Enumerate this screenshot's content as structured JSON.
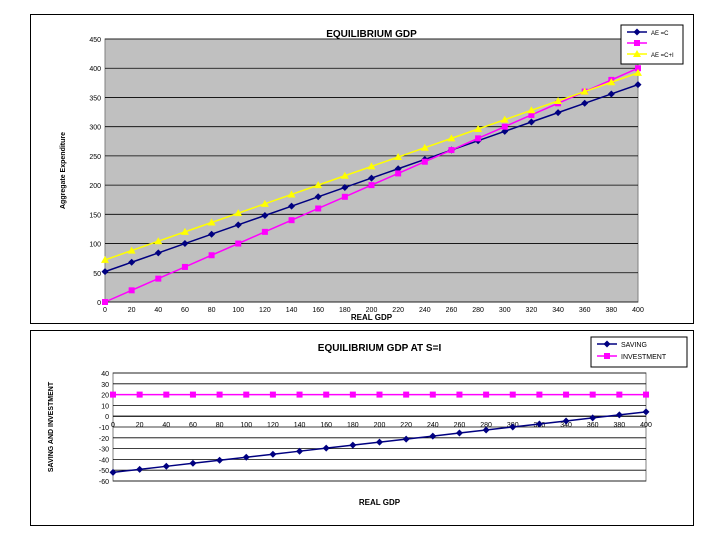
{
  "chart_data": [
    {
      "type": "line",
      "title": "EQUILIBRIUM GDP",
      "xlabel": "REAL GDP",
      "ylabel": "Aggregate Expenditure",
      "x": [
        0,
        20,
        40,
        60,
        80,
        100,
        120,
        140,
        160,
        180,
        200,
        220,
        240,
        260,
        280,
        300,
        320,
        340,
        360,
        380,
        400
      ],
      "xlim": [
        0,
        400
      ],
      "ylim": [
        0,
        450
      ],
      "yticks": [
        0,
        50,
        100,
        150,
        200,
        250,
        300,
        350,
        400,
        450
      ],
      "plot_background": "#c0c0c0",
      "grid": true,
      "legend_position": "top-right",
      "series": [
        {
          "name": "AE =C",
          "color": "#000080",
          "marker": "diamond",
          "values": [
            52,
            68,
            84,
            100,
            116,
            132,
            148,
            164,
            180,
            196,
            212,
            228,
            244,
            260,
            276,
            292,
            308,
            324,
            340,
            356,
            372
          ]
        },
        {
          "name": "",
          "color": "#ff00ff",
          "marker": "square",
          "values": [
            0,
            20,
            40,
            60,
            80,
            100,
            120,
            140,
            160,
            180,
            200,
            220,
            240,
            260,
            280,
            300,
            320,
            340,
            360,
            380,
            400
          ]
        },
        {
          "name": "AE =C+I",
          "color": "#ffff00",
          "marker": "triangle",
          "values": [
            72,
            88,
            104,
            120,
            136,
            152,
            168,
            184,
            200,
            216,
            232,
            248,
            264,
            280,
            296,
            312,
            328,
            344,
            360,
            376,
            392
          ]
        }
      ]
    },
    {
      "type": "line",
      "title": "EQUILIBRIUM GDP AT S=I",
      "xlabel": "REAL GDP",
      "ylabel": "SAVING AND INVESTMENT",
      "x": [
        0,
        20,
        40,
        60,
        80,
        100,
        120,
        140,
        160,
        180,
        200,
        220,
        240,
        260,
        280,
        300,
        320,
        340,
        360,
        380,
        400
      ],
      "xticks": [
        "0",
        "20",
        "40",
        "60",
        "80",
        "100",
        "120",
        "140",
        "160",
        "180",
        "200",
        "220",
        "240",
        "260",
        "280",
        "300",
        "320",
        "340",
        "360",
        "380",
        "400"
      ],
      "xlim": [
        0,
        400
      ],
      "ylim": [
        -60,
        40
      ],
      "yticks": [
        40,
        30,
        20,
        10,
        0,
        -10,
        -20,
        -30,
        -40,
        -50,
        -60
      ],
      "plot_background": "#ffffff",
      "grid": true,
      "legend_position": "top-right",
      "series": [
        {
          "name": "SAVING",
          "color": "#000080",
          "marker": "diamond",
          "values": [
            -52,
            -49.2,
            -46.4,
            -43.6,
            -40.8,
            -38,
            -35.2,
            -32.4,
            -29.6,
            -26.8,
            -24,
            -21.2,
            -18.4,
            -15.6,
            -12.8,
            -10,
            -7.2,
            -4.4,
            -1.6,
            1.2,
            4
          ]
        },
        {
          "name": "INVESTMENT",
          "color": "#ff00ff",
          "marker": "square",
          "values": [
            20,
            20,
            20,
            20,
            20,
            20,
            20,
            20,
            20,
            20,
            20,
            20,
            20,
            20,
            20,
            20,
            20,
            20,
            20,
            20,
            20
          ]
        }
      ]
    }
  ]
}
